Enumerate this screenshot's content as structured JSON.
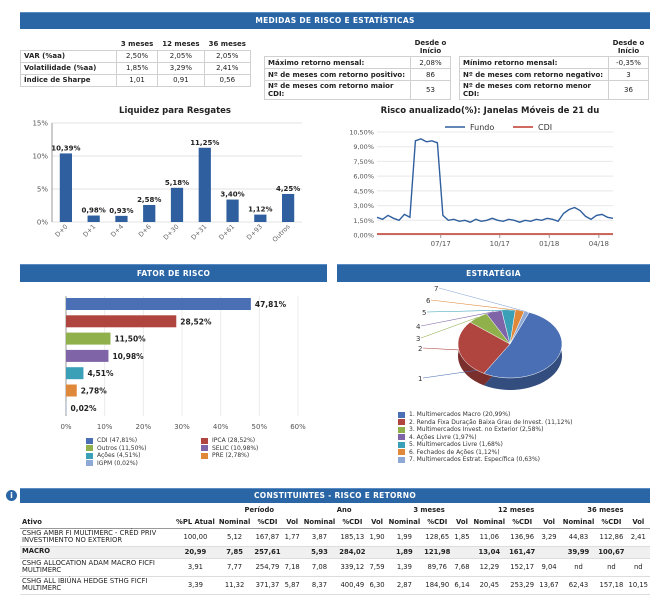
{
  "risk_header": "MEDIDAS DE RISCO E ESTATÍSTICAS",
  "stats": {
    "cols": [
      "3 meses",
      "12 meses",
      "36 meses"
    ],
    "rows": [
      [
        "VAR (%aa)",
        "2,50%",
        "2,05%",
        "2,05%"
      ],
      [
        "Volatilidade (%aa)",
        "1,85%",
        "3,29%",
        "2,41%"
      ],
      [
        "Índice de Sharpe",
        "1,01",
        "0,91",
        "0,56"
      ]
    ]
  },
  "ret_pos": {
    "head": "Desde o Início",
    "rows": [
      [
        "Máximo retorno mensal:",
        "2,08%"
      ],
      [
        "Nº de meses com retorno positivo:",
        "86"
      ],
      [
        "Nº de meses com retorno maior CDI:",
        "53"
      ]
    ]
  },
  "ret_neg": {
    "head": "Desde o Início",
    "rows": [
      [
        "Mínimo retorno mensal:",
        "-0,35%"
      ],
      [
        "Nº de meses com retorno negativo:",
        "3"
      ],
      [
        "Nº de meses com retorno menor CDI:",
        "36"
      ]
    ]
  },
  "colors": {
    "bar": "#2f5f9e",
    "header": "#2a66a6",
    "fundo": "#2f5f9e",
    "cdi": "#c0392b"
  },
  "chart_data": [
    {
      "type": "bar",
      "title": "Liquidez para Resgates",
      "categories": [
        "D+0",
        "D+1",
        "D+4",
        "D+6",
        "D+30",
        "D+31",
        "D+61",
        "D+93",
        "Outros"
      ],
      "values": [
        10.39,
        0.98,
        0.93,
        2.58,
        5.18,
        11.25,
        3.4,
        1.12,
        4.25
      ],
      "labels": [
        "10,39%",
        "0,98%",
        "0,93%",
        "2,58%",
        "5,18%",
        "11,25%",
        "3,40%",
        "1,12%",
        "4,25%"
      ],
      "yticks": [
        "0%",
        "5%",
        "10%",
        "15%"
      ],
      "ylim": [
        0,
        15
      ]
    },
    {
      "type": "line",
      "title": "Risco anualizado(%): Janelas Móveis de 21 du",
      "legend": [
        "Fundo",
        "CDI"
      ],
      "yticks": [
        "0,00%",
        "1,50%",
        "3,00%",
        "4,50%",
        "6,00%",
        "7,50%",
        "9,00%",
        "10,50%"
      ],
      "xticks": [
        "07/17",
        "10/17",
        "01/18",
        "04/18"
      ],
      "ylim": [
        0,
        10.5
      ],
      "series": [
        {
          "name": "Fundo",
          "values": [
            1.8,
            1.6,
            2.0,
            1.7,
            1.5,
            2.1,
            1.8,
            9.6,
            9.8,
            9.5,
            9.6,
            9.4,
            2.0,
            1.5,
            1.6,
            1.4,
            1.5,
            1.3,
            1.6,
            1.4,
            1.5,
            1.7,
            1.5,
            1.4,
            1.6,
            1.5,
            1.3,
            1.5,
            1.4,
            1.6,
            1.5,
            1.7,
            1.6,
            1.4,
            2.2,
            2.6,
            2.8,
            2.5,
            1.9,
            1.6,
            2.0,
            2.1,
            1.8,
            1.7
          ]
        },
        {
          "name": "CDI",
          "values": [
            0.1,
            0.1,
            0.1,
            0.1,
            0.1,
            0.1,
            0.1,
            0.1,
            0.1,
            0.1,
            0.1,
            0.1,
            0.1,
            0.1,
            0.1,
            0.1,
            0.1,
            0.1,
            0.1,
            0.1,
            0.1,
            0.1,
            0.1,
            0.1,
            0.1,
            0.1,
            0.1,
            0.1,
            0.1,
            0.1,
            0.1,
            0.1,
            0.1,
            0.1,
            0.1,
            0.1,
            0.1,
            0.1,
            0.1,
            0.1,
            0.1,
            0.1,
            0.1,
            0.1
          ]
        }
      ]
    },
    {
      "type": "bar",
      "title": "FATOR DE RISCO",
      "categories": [
        "CDI",
        "IPCA",
        "Outros",
        "SELIC",
        "Ações",
        "PRE",
        "IGPM"
      ],
      "values": [
        47.81,
        28.52,
        11.5,
        10.98,
        4.51,
        2.78,
        0.02
      ],
      "labels": [
        "47,81%",
        "28,52%",
        "11,50%",
        "10,98%",
        "4,51%",
        "2,78%",
        "0,02%"
      ],
      "colors": [
        "#4a6fb5",
        "#b0443f",
        "#8fb04a",
        "#7f65a8",
        "#3aa0b8",
        "#e0883a",
        "#8fa9d6"
      ],
      "xticks": [
        "0%",
        "10%",
        "20%",
        "30%",
        "40%",
        "50%",
        "60%"
      ],
      "xlim": [
        0,
        60
      ],
      "legend": [
        "CDI (47,81%)",
        "IPCA (28,52%)",
        "Outros (11,50%)",
        "SELIC (10,98%)",
        "Ações (4,51%)",
        "PRE (2,78%)",
        "IGPM (0,02%)"
      ]
    },
    {
      "type": "pie",
      "title": "ESTRATÉGIA",
      "values": [
        20.99,
        11.12,
        2.58,
        1.97,
        1.68,
        1.12,
        0.63
      ],
      "colors": [
        "#4a6fb5",
        "#b0443f",
        "#8fb04a",
        "#7f65a8",
        "#3aa0b8",
        "#e0883a",
        "#8fa9d6"
      ],
      "labels": [
        "1",
        "2",
        "3",
        "4",
        "5",
        "6",
        "7"
      ],
      "legend": [
        "1. Multimercados Macro (20,99%)",
        "2. Renda Fixa Duração Baixa Grau de Invest. (11,12%)",
        "3. Multimercados Invest. no Exterior (2,58%)",
        "4. Ações Livre (1,97%)",
        "5. Multimercados Livre (1,68%)",
        "6. Fechados de Ações (1,12%)",
        "7. Multimercados Estrat. Específica (0,63%)"
      ]
    }
  ],
  "const": {
    "title": "CONSTITUINTES - RISCO E RETORNO",
    "groups": [
      "Período",
      "Ano",
      "3 meses",
      "12 meses",
      "36 meses"
    ],
    "cols": [
      "Ativo",
      "%PL Atual",
      "Nominal",
      "%CDI",
      "Vol",
      "Nominal",
      "%CDI",
      "Vol",
      "Nominal",
      "%CDI",
      "Vol",
      "Nominal",
      "%CDI",
      "Vol",
      "Nominal",
      "%CDI",
      "Vol"
    ],
    "rows": [
      [
        "CSHG AMBR FI MULTIMERC - CRÉD PRIV INVESTIMENTO NO EXTERIOR",
        "100,00",
        "5,12",
        "167,87",
        "1,77",
        "3,87",
        "185,13",
        "1,90",
        "1,99",
        "128,65",
        "1,85",
        "11,06",
        "136,96",
        "3,29",
        "44,83",
        "112,86",
        "2,41"
      ],
      [
        "MACRO",
        "20,99",
        "7,85",
        "257,61",
        "",
        "5,93",
        "284,02",
        "",
        "1,89",
        "121,98",
        "",
        "13,04",
        "161,47",
        "",
        "39,99",
        "100,67",
        ""
      ],
      [
        "CSHG ALLOCATION ADAM MACRO FICFI MULTIMERC",
        "3,91",
        "7,77",
        "254,79",
        "7,18",
        "7,08",
        "339,12",
        "7,59",
        "1,39",
        "89,76",
        "7,68",
        "12,29",
        "152,17",
        "9,04",
        "nd",
        "nd",
        "nd"
      ],
      [
        "CSHG ALL IBIÚNA HEDGE STHG FICFI MULTIMERC",
        "3,39",
        "11,32",
        "371,37",
        "5,87",
        "8,37",
        "400,49",
        "6,30",
        "2,87",
        "184,90",
        "6,14",
        "20,45",
        "253,29",
        "13,67",
        "62,43",
        "157,18",
        "10,15"
      ]
    ]
  },
  "sections": {
    "fator": "FATOR DE RISCO",
    "estrategia": "ESTRATÉGIA"
  },
  "info_icon": "i"
}
